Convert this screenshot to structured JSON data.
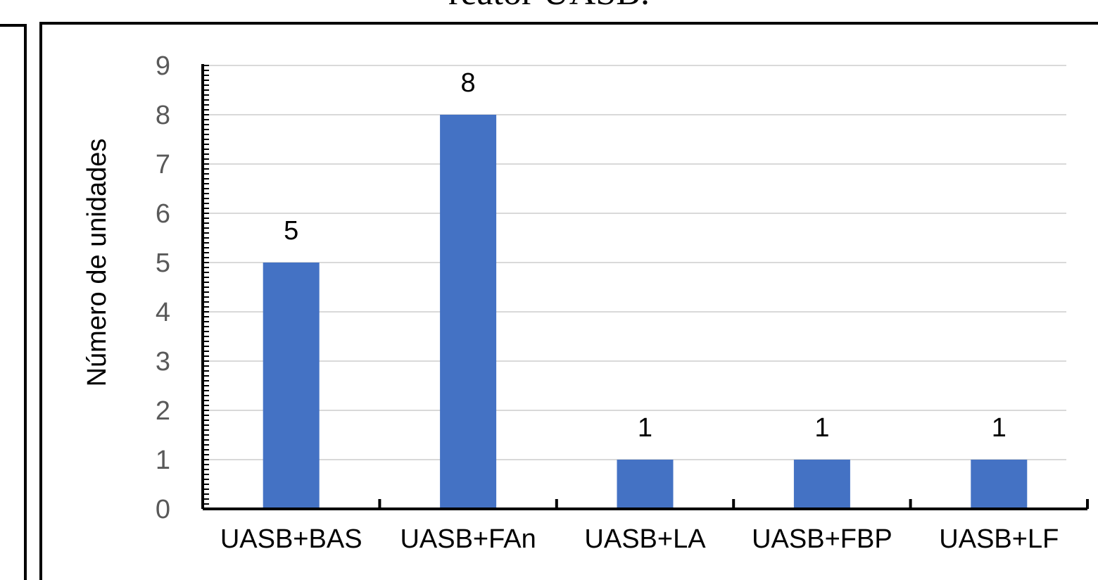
{
  "caption": "reator UASB.",
  "colors": {
    "bar": "#4472C4",
    "grid": "#D9D9D9",
    "axis": "#000000",
    "tick_text": "#595959"
  },
  "chart_data": {
    "type": "bar",
    "title": "",
    "xlabel": "",
    "ylabel": "Número de unidades",
    "categories": [
      "UASB+BAS",
      "UASB+FAn",
      "UASB+LA",
      "UASB+FBP",
      "UASB+LF"
    ],
    "values": [
      5,
      8,
      1,
      1,
      1
    ],
    "data_labels": [
      "5",
      "8",
      "1",
      "1",
      "1"
    ],
    "yticks": [
      "0",
      "1",
      "2",
      "3",
      "4",
      "5",
      "6",
      "7",
      "8",
      "9"
    ],
    "ylim": [
      0,
      9
    ],
    "grid": true,
    "legend": "none"
  }
}
